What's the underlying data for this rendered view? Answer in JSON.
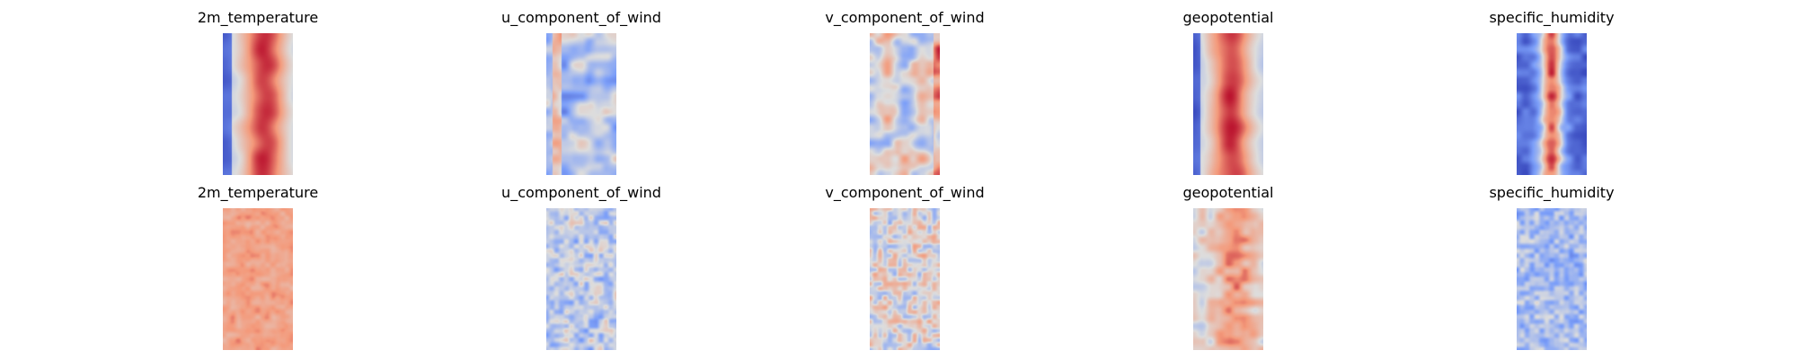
{
  "figure": {
    "rows": [
      {
        "panels": [
          {
            "title": "2m_temperature",
            "pattern": "temp_smooth"
          },
          {
            "title": "u_component_of_wind",
            "pattern": "u_smooth"
          },
          {
            "title": "v_component_of_wind",
            "pattern": "v_smooth"
          },
          {
            "title": "geopotential",
            "pattern": "geo_smooth"
          },
          {
            "title": "specific_humidity",
            "pattern": "q_smooth"
          }
        ]
      },
      {
        "panels": [
          {
            "title": "2m_temperature",
            "pattern": "temp_noisy"
          },
          {
            "title": "u_component_of_wind",
            "pattern": "u_noisy"
          },
          {
            "title": "v_component_of_wind",
            "pattern": "v_noisy"
          },
          {
            "title": "geopotential",
            "pattern": "geo_noisy"
          },
          {
            "title": "specific_humidity",
            "pattern": "q_noisy"
          }
        ]
      }
    ]
  },
  "chart_data": {
    "type": "heatmap",
    "colormap": "coolwarm",
    "grid": false,
    "axes_visible": false,
    "layout": "2 rows x 5 columns of image panels",
    "titles": [
      [
        "2m_temperature",
        "u_component_of_wind",
        "v_component_of_wind",
        "geopotential",
        "specific_humidity"
      ],
      [
        "2m_temperature",
        "u_component_of_wind",
        "v_component_of_wind",
        "geopotential",
        "specific_humidity"
      ]
    ]
  }
}
